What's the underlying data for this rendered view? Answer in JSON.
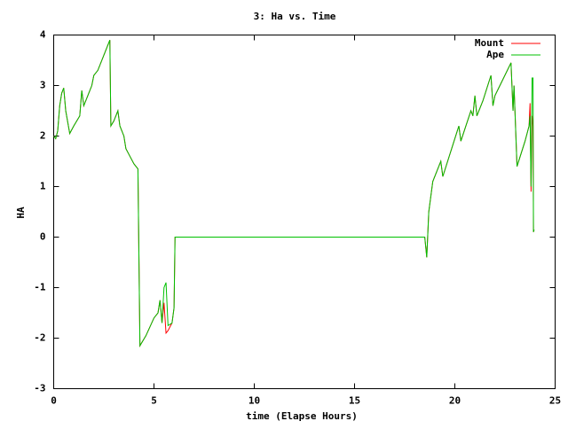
{
  "chart_data": {
    "type": "line",
    "title": "3: Ha vs. Time",
    "x_label": "time (Elapse Hours)",
    "y_label": "HA",
    "x": [
      0,
      0.1,
      0.2,
      0.3,
      0.4,
      0.5,
      0.6,
      0.8,
      1.0,
      1.3,
      1.4,
      1.5,
      1.7,
      1.9,
      2.0,
      2.2,
      2.5,
      2.8,
      2.85,
      3.0,
      3.2,
      3.3,
      3.5,
      3.6,
      3.8,
      4.0,
      4.2,
      4.25,
      4.3,
      4.6,
      5.0,
      5.2,
      5.3,
      5.4,
      5.5,
      5.6,
      5.7,
      5.9,
      6.0,
      6.05,
      18.5,
      18.6,
      18.7,
      18.9,
      19.3,
      19.4,
      20.2,
      20.3,
      20.8,
      20.9,
      21.0,
      21.1,
      21.4,
      21.8,
      21.9,
      22.0,
      22.8,
      22.9,
      22.95,
      23.1,
      23.5,
      23.7,
      23.75,
      23.8,
      23.85,
      23.9,
      23.92,
      23.95
    ],
    "series": [
      {
        "name": "Mount",
        "color": "#ff0000",
        "values": [
          2.0,
          1.95,
          2.1,
          2.6,
          2.85,
          2.95,
          2.5,
          2.05,
          2.2,
          2.4,
          2.9,
          2.6,
          2.8,
          3.0,
          3.2,
          3.3,
          3.6,
          3.9,
          2.2,
          2.3,
          2.5,
          2.2,
          2.0,
          1.75,
          1.6,
          1.45,
          1.35,
          -0.4,
          -2.15,
          -1.95,
          -1.6,
          -1.5,
          -1.25,
          -1.7,
          -1.3,
          -1.9,
          -1.85,
          -1.7,
          -1.4,
          0,
          0,
          -0.4,
          0.5,
          1.1,
          1.5,
          1.2,
          2.2,
          1.9,
          2.5,
          2.4,
          2.8,
          2.4,
          2.7,
          3.2,
          2.6,
          2.8,
          3.45,
          2.5,
          3.0,
          1.4,
          1.9,
          2.2,
          2.65,
          0.9,
          2.4,
          2.2,
          0.1,
          0.15
        ]
      },
      {
        "name": "Ape",
        "color": "#00c000",
        "values": [
          2.0,
          1.95,
          2.1,
          2.6,
          2.85,
          2.95,
          2.5,
          2.05,
          2.2,
          2.4,
          2.9,
          2.6,
          2.8,
          3.0,
          3.2,
          3.3,
          3.6,
          3.9,
          2.2,
          2.3,
          2.5,
          2.2,
          2.0,
          1.75,
          1.6,
          1.45,
          1.35,
          -0.4,
          -2.15,
          -1.95,
          -1.6,
          -1.5,
          -1.25,
          -1.7,
          -1.0,
          -0.9,
          -1.75,
          -1.7,
          -1.4,
          0,
          0,
          -0.4,
          0.5,
          1.1,
          1.5,
          1.2,
          2.2,
          1.9,
          2.5,
          2.4,
          2.8,
          2.4,
          2.7,
          3.2,
          2.6,
          2.8,
          3.45,
          2.5,
          3.0,
          1.4,
          1.9,
          2.2,
          2.4,
          1.0,
          3.15,
          3.15,
          0.1,
          0.15
        ]
      }
    ],
    "xlim": [
      0,
      25
    ],
    "ylim": [
      -3,
      4
    ],
    "xticks": [
      0,
      5,
      10,
      15,
      20,
      25
    ],
    "yticks": [
      -3,
      -2,
      -1,
      0,
      1,
      2,
      3,
      4
    ],
    "legend": "upper right"
  }
}
